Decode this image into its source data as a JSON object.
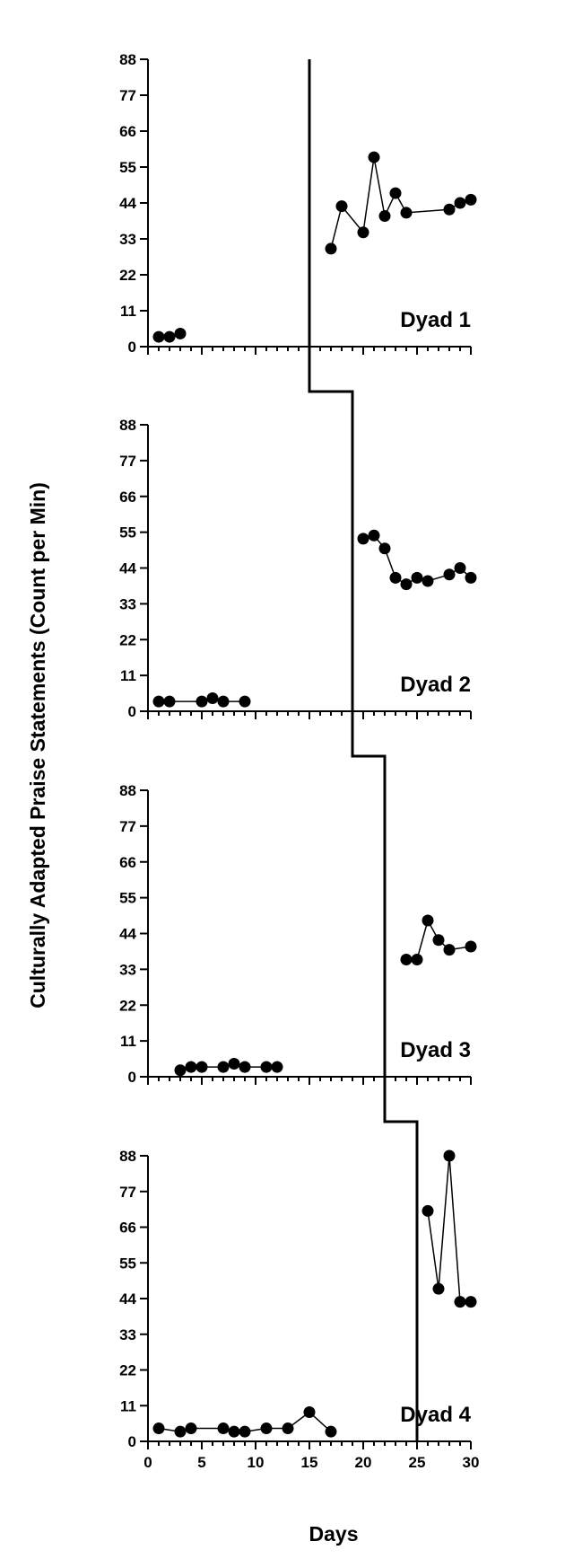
{
  "chart_data": {
    "type": "line",
    "layout": "multiple-baseline",
    "ylabel": "Culturally Adapted Praise Statements (Count per Min)",
    "xlabel": "Days",
    "xlim": [
      0,
      30
    ],
    "ylim": [
      0,
      88
    ],
    "x_ticks": [
      0,
      5,
      10,
      15,
      20,
      25,
      30
    ],
    "y_ticks": [
      0,
      11,
      22,
      33,
      44,
      55,
      66,
      77,
      88
    ],
    "panels": [
      {
        "label": "Dyad 1",
        "phase_change_day": 15,
        "baseline": [
          [
            1,
            3
          ],
          [
            2,
            3
          ],
          [
            3,
            4
          ]
        ],
        "intervention": [
          [
            17,
            30
          ],
          [
            18,
            43
          ],
          [
            20,
            35
          ],
          [
            21,
            58
          ],
          [
            22,
            40
          ],
          [
            23,
            47
          ],
          [
            24,
            41
          ],
          [
            28,
            42
          ],
          [
            29,
            44
          ],
          [
            30,
            45
          ]
        ]
      },
      {
        "label": "Dyad 2",
        "phase_change_day": 19,
        "baseline": [
          [
            1,
            3
          ],
          [
            2,
            3
          ],
          [
            5,
            3
          ],
          [
            6,
            4
          ],
          [
            7,
            3
          ],
          [
            9,
            3
          ]
        ],
        "intervention": [
          [
            20,
            53
          ],
          [
            21,
            54
          ],
          [
            22,
            50
          ],
          [
            23,
            41
          ],
          [
            24,
            39
          ],
          [
            25,
            41
          ],
          [
            26,
            40
          ],
          [
            28,
            42
          ],
          [
            29,
            44
          ],
          [
            30,
            41
          ]
        ]
      },
      {
        "label": "Dyad 3",
        "phase_change_day": 22,
        "baseline": [
          [
            3,
            2
          ],
          [
            4,
            3
          ],
          [
            5,
            3
          ],
          [
            7,
            3
          ],
          [
            8,
            4
          ],
          [
            9,
            3
          ],
          [
            11,
            3
          ],
          [
            12,
            3
          ]
        ],
        "intervention": [
          [
            24,
            36
          ],
          [
            25,
            36
          ],
          [
            26,
            48
          ],
          [
            27,
            42
          ],
          [
            28,
            39
          ],
          [
            30,
            40
          ]
        ]
      },
      {
        "label": "Dyad 4",
        "phase_change_day": 25,
        "baseline": [
          [
            1,
            4
          ],
          [
            3,
            3
          ],
          [
            4,
            4
          ],
          [
            7,
            4
          ],
          [
            8,
            3
          ],
          [
            9,
            3
          ],
          [
            11,
            4
          ],
          [
            13,
            4
          ],
          [
            15,
            9
          ],
          [
            17,
            3
          ]
        ],
        "intervention": [
          [
            26,
            71
          ],
          [
            27,
            47
          ],
          [
            28,
            88
          ],
          [
            29,
            43
          ],
          [
            30,
            43
          ]
        ]
      }
    ]
  }
}
